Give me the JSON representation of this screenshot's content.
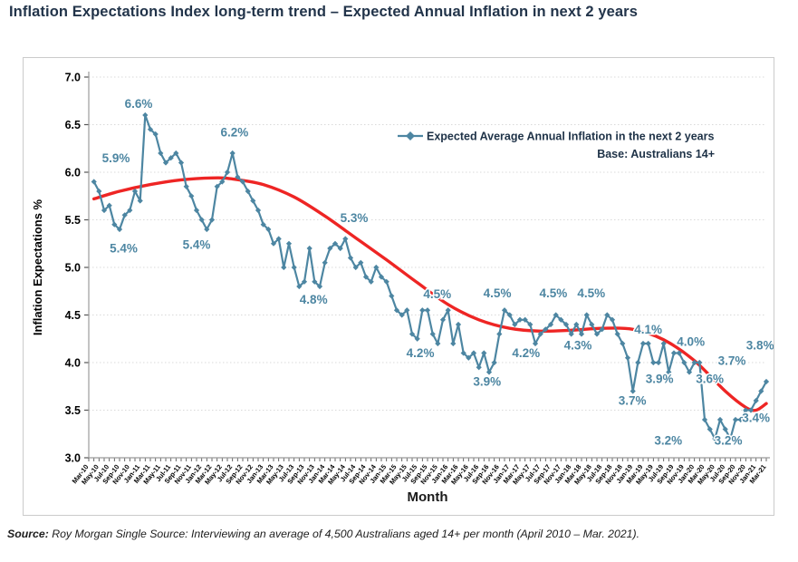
{
  "page": {
    "title": "Inflation Expectations Index long-term trend – Expected Annual Inflation in next 2 years",
    "source_label": "Source:",
    "source_text": " Roy Morgan Single Source: Interviewing an average of 4,500 Australians aged 14+ per month (April 2010 – Mar. 2021)."
  },
  "chart_data": {
    "type": "line",
    "xlabel": "Month",
    "ylabel": "Inflation Expectations %",
    "ylim": [
      3.0,
      7.0
    ],
    "grid": "horizontal-dotted",
    "legend": {
      "series_label": "Expected Average Annual Inflation in the next 2 years",
      "base_label": "Base: Australians 14+",
      "position": "top-right"
    },
    "colors": {
      "series": "#4d86a2",
      "trend": "#ee2524",
      "annotation": "#4d86a2",
      "axis": "#9b9b9b",
      "tick": "#555555",
      "gridline": "#d9d9d9",
      "axis_text": "#000000",
      "legend_text": "#1e3247"
    },
    "y_ticks": [
      "7.0",
      "6.5",
      "6.0",
      "5.5",
      "5.0",
      "4.5",
      "4.0",
      "3.5",
      "3.0"
    ],
    "x_tick_labels": [
      "Mar-10",
      "May-10",
      "Jul-10",
      "Sep-10",
      "Nov-10",
      "Jan-11",
      "Mar-11",
      "May-11",
      "Jul-11",
      "Sep-11",
      "Nov-11",
      "Jan-12",
      "Mar-12",
      "May-12",
      "Jul-12",
      "Sep-12",
      "Nov-12",
      "Jan-13",
      "Mar-13",
      "May-13",
      "Jul-13",
      "Sep-13",
      "Nov-13",
      "Jan-14",
      "Mar-14",
      "May-14",
      "Jul-14",
      "Sep-14",
      "Nov-14",
      "Jan-15",
      "Mar-15",
      "May-15",
      "Jul-15",
      "Sep-15",
      "Nov-15",
      "Jan-16",
      "Mar-16",
      "May-16",
      "Jul-16",
      "Sep-16",
      "Nov-16",
      "Jan-17",
      "Mar-17",
      "May-17",
      "Jul-17",
      "Sep-17",
      "Nov-17",
      "Jan-18",
      "Mar-18",
      "May-18",
      "Jul-18",
      "Sep-18",
      "Nov-18",
      "Jan-19",
      "Mar-19",
      "May-19",
      "Jul-19",
      "Sep-19",
      "Nov-19",
      "Jan-20",
      "Mar-20",
      "May-20",
      "Jul-20",
      "Sep-20",
      "Nov-20",
      "Jan-21",
      "Mar-21"
    ],
    "series": [
      {
        "name": "Expected Average Annual Inflation in the next 2 years",
        "marker": "diamond",
        "frequency": "monthly",
        "start": "Apr-10",
        "end": "Mar-21",
        "start_month_offset": 1,
        "values": [
          5.9,
          5.8,
          5.6,
          5.65,
          5.45,
          5.4,
          5.55,
          5.6,
          5.8,
          5.7,
          6.6,
          6.45,
          6.4,
          6.2,
          6.1,
          6.15,
          6.2,
          6.1,
          5.85,
          5.75,
          5.6,
          5.5,
          5.4,
          5.5,
          5.85,
          5.9,
          6.0,
          6.2,
          5.95,
          5.9,
          5.8,
          5.7,
          5.6,
          5.45,
          5.4,
          5.25,
          5.3,
          5.0,
          5.25,
          5.0,
          4.8,
          4.85,
          5.2,
          4.85,
          4.8,
          5.05,
          5.2,
          5.25,
          5.2,
          5.3,
          5.1,
          5.0,
          5.05,
          4.9,
          4.85,
          5.0,
          4.9,
          4.85,
          4.7,
          4.55,
          4.5,
          4.55,
          4.3,
          4.25,
          4.55,
          4.55,
          4.3,
          4.2,
          4.45,
          4.55,
          4.2,
          4.4,
          4.1,
          4.05,
          4.1,
          3.95,
          4.1,
          3.9,
          4.0,
          4.3,
          4.55,
          4.5,
          4.4,
          4.45,
          4.45,
          4.4,
          4.2,
          4.3,
          4.35,
          4.4,
          4.5,
          4.45,
          4.4,
          4.3,
          4.4,
          4.3,
          4.5,
          4.4,
          4.3,
          4.35,
          4.5,
          4.45,
          4.3,
          4.2,
          4.05,
          3.7,
          4.0,
          4.2,
          4.2,
          4.0,
          4.0,
          4.2,
          3.9,
          4.1,
          4.1,
          4.0,
          3.9,
          4.0,
          4.0,
          3.4,
          3.3,
          3.2,
          3.4,
          3.3,
          3.2,
          3.4,
          3.4,
          3.5,
          3.5,
          3.6,
          3.7,
          3.8
        ]
      },
      {
        "name": "trend-line",
        "style": "smooth",
        "points": [
          [
            1,
            5.72
          ],
          [
            6,
            5.8
          ],
          [
            12,
            5.87
          ],
          [
            18,
            5.92
          ],
          [
            24,
            5.94
          ],
          [
            28,
            5.93
          ],
          [
            34,
            5.87
          ],
          [
            40,
            5.74
          ],
          [
            46,
            5.54
          ],
          [
            52,
            5.31
          ],
          [
            58,
            5.08
          ],
          [
            64,
            4.84
          ],
          [
            70,
            4.61
          ],
          [
            76,
            4.45
          ],
          [
            82,
            4.36
          ],
          [
            88,
            4.33
          ],
          [
            94,
            4.34
          ],
          [
            100,
            4.36
          ],
          [
            106,
            4.35
          ],
          [
            112,
            4.24
          ],
          [
            118,
            4.02
          ],
          [
            124,
            3.7
          ],
          [
            128,
            3.53
          ],
          [
            130,
            3.5
          ],
          [
            132,
            3.57
          ]
        ]
      }
    ],
    "annotations": [
      {
        "text": "5.9%",
        "m": 5.3,
        "v": 6.15
      },
      {
        "text": "5.4%",
        "m": 6.8,
        "v": 5.2
      },
      {
        "text": "6.6%",
        "m": 9.7,
        "v": 6.72
      },
      {
        "text": "5.4%",
        "m": 21.0,
        "v": 5.24
      },
      {
        "text": "6.2%",
        "m": 28.4,
        "v": 6.42
      },
      {
        "text": "4.8%",
        "m": 43.8,
        "v": 4.66
      },
      {
        "text": "5.3%",
        "m": 51.7,
        "v": 5.52
      },
      {
        "text": "4.2%",
        "m": 64.6,
        "v": 4.1
      },
      {
        "text": "4.5%",
        "m": 67.9,
        "v": 4.72
      },
      {
        "text": "3.9%",
        "m": 77.6,
        "v": 3.8
      },
      {
        "text": "4.5%",
        "m": 79.6,
        "v": 4.73
      },
      {
        "text": "4.2%",
        "m": 85.2,
        "v": 4.1
      },
      {
        "text": "4.5%",
        "m": 90.5,
        "v": 4.73
      },
      {
        "text": "4.3%",
        "m": 95.3,
        "v": 4.18
      },
      {
        "text": "4.5%",
        "m": 97.9,
        "v": 4.73
      },
      {
        "text": "3.7%",
        "m": 105.9,
        "v": 3.6
      },
      {
        "text": "4.1%",
        "m": 109.0,
        "v": 4.35
      },
      {
        "text": "3.9%",
        "m": 111.2,
        "v": 3.83
      },
      {
        "text": "4.0%",
        "m": 117.3,
        "v": 4.22
      },
      {
        "text": "3.2%",
        "m": 112.9,
        "v": 3.18
      },
      {
        "text": "3.6%",
        "m": 121.0,
        "v": 3.83
      },
      {
        "text": "3.7%",
        "m": 125.3,
        "v": 4.02
      },
      {
        "text": "3.2%",
        "m": 124.6,
        "v": 3.18
      },
      {
        "text": "3.4%",
        "m": 130.0,
        "v": 3.42
      },
      {
        "text": "3.8%",
        "m": 130.8,
        "v": 4.18
      }
    ]
  }
}
